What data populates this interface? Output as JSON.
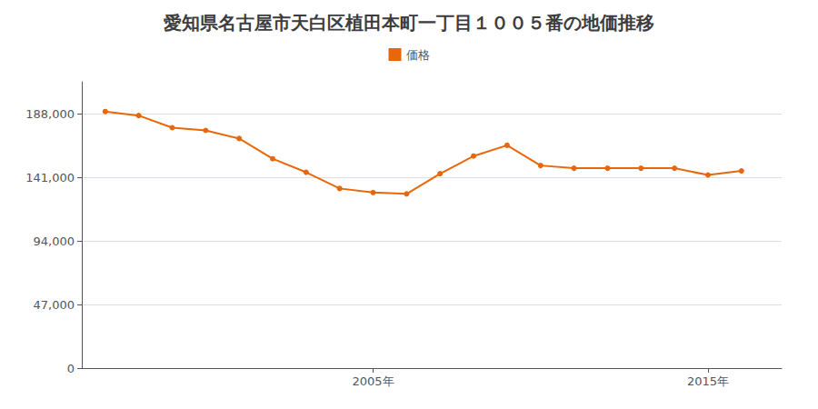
{
  "chart_data": {
    "type": "line",
    "title": "愛知県名古屋市天白区植田本町一丁目１００５番の地価推移",
    "x": [
      1997,
      1998,
      1999,
      2000,
      2001,
      2002,
      2003,
      2004,
      2005,
      2006,
      2007,
      2008,
      2009,
      2010,
      2011,
      2012,
      2013,
      2014,
      2015,
      2016
    ],
    "series": [
      {
        "name": "価格",
        "color": "#E8670A",
        "marker": "circle",
        "values": [
          190000,
          187000,
          178000,
          176000,
          170000,
          155000,
          145000,
          133000,
          130000,
          129000,
          144000,
          157000,
          165000,
          150000,
          148000,
          148000,
          148000,
          148000,
          143000,
          146000
        ]
      }
    ],
    "xlim": [
      1996.3,
      2017.2
    ],
    "xticks": [
      {
        "value": 2005,
        "label": "2005年"
      },
      {
        "value": 2015,
        "label": "2015年"
      }
    ],
    "ylim": [
      0,
      212000
    ],
    "yticks": [
      0,
      {
        "value": 47000,
        "label": "47,000"
      },
      {
        "value": 94000,
        "label": "94,000"
      },
      {
        "value": 141000,
        "label": "141,000"
      },
      {
        "value": 188000,
        "label": "188,000"
      }
    ],
    "grid": "y",
    "legend": "top"
  }
}
